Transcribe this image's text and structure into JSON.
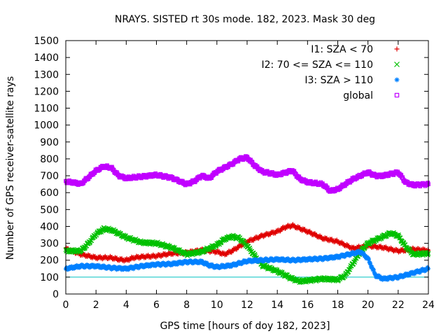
{
  "chart_data": {
    "type": "scatter",
    "title": "NRAYS. SISTED rt 30s mode. 182, 2023. Mask 30 deg",
    "xlabel": "GPS time [hours of doy 182, 2023]",
    "ylabel": "Number of GPS receiver-satellite rays",
    "xlim": [
      0,
      24
    ],
    "ylim": [
      0,
      1500
    ],
    "xticks": [
      "0",
      "2",
      "4",
      "6",
      "8",
      "10",
      "12",
      "14",
      "16",
      "18",
      "20",
      "22",
      "24"
    ],
    "yticks": [
      "0",
      "100",
      "200",
      "300",
      "400",
      "500",
      "600",
      "700",
      "800",
      "900",
      "1000",
      "1100",
      "1200",
      "1300",
      "1400",
      "1500"
    ],
    "reference_line": {
      "y": 100,
      "color": "#00c0c0"
    },
    "legend_position": "top-right",
    "series": [
      {
        "name": "I1: SZA < 70",
        "marker": "+",
        "color": "#e00000",
        "points": [
          [
            0,
            268
          ],
          [
            1,
            235
          ],
          [
            2,
            215
          ],
          [
            3,
            215
          ],
          [
            3.5,
            205
          ],
          [
            4,
            200
          ],
          [
            4.5,
            215
          ],
          [
            5,
            220
          ],
          [
            6,
            225
          ],
          [
            7,
            240
          ],
          [
            8,
            245
          ],
          [
            9,
            260
          ],
          [
            10,
            250
          ],
          [
            10.5,
            235
          ],
          [
            11,
            255
          ],
          [
            12,
            310
          ],
          [
            13,
            345
          ],
          [
            14,
            370
          ],
          [
            14.5,
            395
          ],
          [
            15,
            405
          ],
          [
            16,
            370
          ],
          [
            17,
            330
          ],
          [
            18,
            310
          ],
          [
            19,
            270
          ],
          [
            20,
            285
          ],
          [
            21,
            275
          ],
          [
            22,
            255
          ],
          [
            23,
            265
          ],
          [
            24,
            258
          ]
        ]
      },
      {
        "name": "I2: 70 <= SZA <= 110",
        "marker": "x",
        "color": "#00c000",
        "points": [
          [
            0,
            255
          ],
          [
            1,
            255
          ],
          [
            1.5,
            300
          ],
          [
            2,
            355
          ],
          [
            2.5,
            385
          ],
          [
            3,
            380
          ],
          [
            4,
            335
          ],
          [
            5,
            305
          ],
          [
            6,
            300
          ],
          [
            7,
            275
          ],
          [
            8,
            235
          ],
          [
            9,
            250
          ],
          [
            10,
            290
          ],
          [
            10.5,
            325
          ],
          [
            11,
            340
          ],
          [
            11.5,
            330
          ],
          [
            12,
            285
          ],
          [
            13,
            170
          ],
          [
            14,
            135
          ],
          [
            15,
            90
          ],
          [
            15.5,
            75
          ],
          [
            16,
            80
          ],
          [
            17,
            90
          ],
          [
            18,
            85
          ],
          [
            18.5,
            110
          ],
          [
            19,
            180
          ],
          [
            19.5,
            250
          ],
          [
            20,
            300
          ],
          [
            21,
            340
          ],
          [
            21.5,
            360
          ],
          [
            22,
            345
          ],
          [
            22.5,
            280
          ],
          [
            23,
            235
          ],
          [
            24,
            240
          ]
        ]
      },
      {
        "name": "I3: SZA > 110",
        "marker": "*",
        "color": "#0080ff",
        "points": [
          [
            0,
            150
          ],
          [
            1,
            165
          ],
          [
            2,
            165
          ],
          [
            3,
            155
          ],
          [
            4,
            150
          ],
          [
            5,
            165
          ],
          [
            6,
            175
          ],
          [
            7,
            178
          ],
          [
            8,
            190
          ],
          [
            9,
            190
          ],
          [
            9.5,
            170
          ],
          [
            10,
            160
          ],
          [
            11,
            170
          ],
          [
            12,
            195
          ],
          [
            13,
            200
          ],
          [
            14,
            205
          ],
          [
            15,
            200
          ],
          [
            16,
            205
          ],
          [
            17,
            210
          ],
          [
            18,
            220
          ],
          [
            19,
            240
          ],
          [
            19.5,
            250
          ],
          [
            20,
            210
          ],
          [
            20.5,
            110
          ],
          [
            21,
            90
          ],
          [
            22,
            100
          ],
          [
            23,
            125
          ],
          [
            24,
            150
          ]
        ]
      },
      {
        "name": "global",
        "marker": "square",
        "color": "#c000ff",
        "points": [
          [
            0,
            665
          ],
          [
            0.5,
            660
          ],
          [
            1,
            652
          ],
          [
            1.5,
            690
          ],
          [
            2,
            730
          ],
          [
            2.5,
            755
          ],
          [
            3,
            748
          ],
          [
            3.5,
            700
          ],
          [
            4,
            685
          ],
          [
            5,
            695
          ],
          [
            6,
            705
          ],
          [
            7,
            688
          ],
          [
            8,
            650
          ],
          [
            8.5,
            668
          ],
          [
            9,
            700
          ],
          [
            9.5,
            685
          ],
          [
            10,
            725
          ],
          [
            11,
            770
          ],
          [
            11.5,
            800
          ],
          [
            12,
            808
          ],
          [
            12.5,
            760
          ],
          [
            13,
            725
          ],
          [
            14,
            705
          ],
          [
            15,
            730
          ],
          [
            15.5,
            680
          ],
          [
            16,
            662
          ],
          [
            17,
            650
          ],
          [
            17.5,
            610
          ],
          [
            18,
            620
          ],
          [
            19,
            680
          ],
          [
            20,
            720
          ],
          [
            20.5,
            700
          ],
          [
            21,
            700
          ],
          [
            22,
            720
          ],
          [
            22.5,
            660
          ],
          [
            23,
            645
          ],
          [
            24,
            650
          ]
        ]
      }
    ]
  }
}
